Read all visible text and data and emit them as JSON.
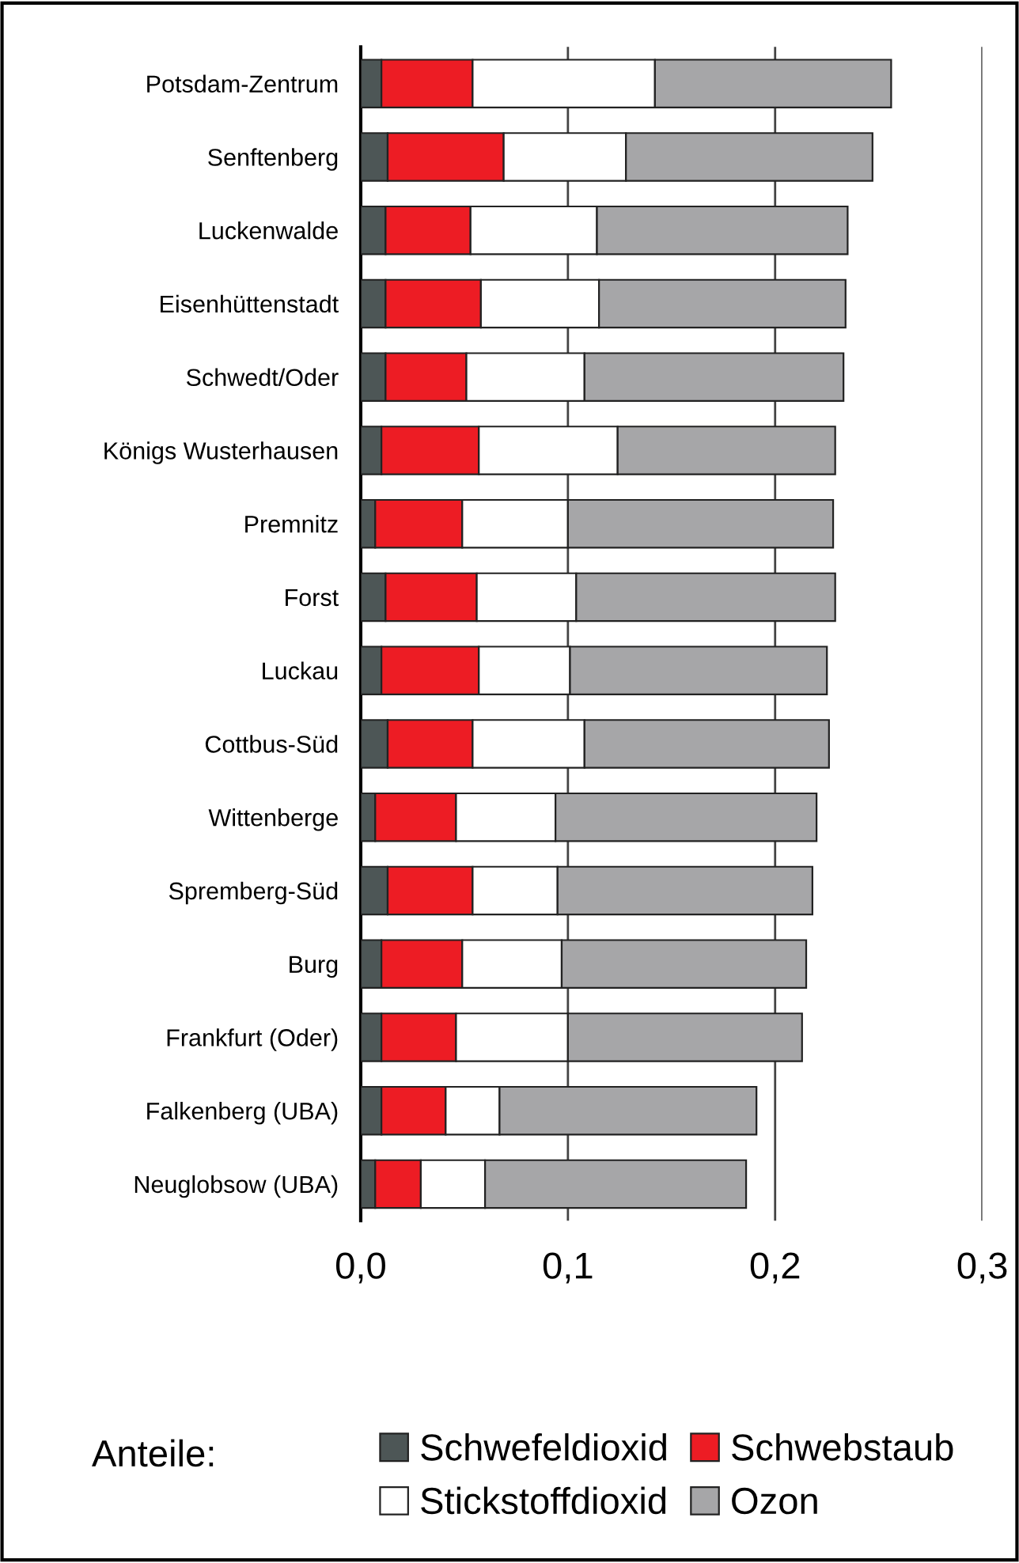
{
  "chart_data": {
    "type": "bar",
    "orientation": "horizontal",
    "stacked": true,
    "legend_title": "Anteile:",
    "legend": "bottom",
    "grid": "x",
    "categories": [
      "Potsdam-Zentrum",
      "Senftenberg",
      "Luckenwalde",
      "Eisenhüttenstadt",
      "Schwedt/Oder",
      "Königs Wusterhausen",
      "Premnitz",
      "Forst",
      "Luckau",
      "Cottbus-Süd",
      "Wittenberge",
      "Spremberg-Süd",
      "Burg",
      "Frankfurt (Oder)",
      "Falkenberg (UBA)",
      "Neuglobsow (UBA)"
    ],
    "series": [
      {
        "name": "Schwefeldioxid",
        "color": "#4d5656",
        "values": [
          0.01,
          0.013,
          0.012,
          0.012,
          0.012,
          0.01,
          0.007,
          0.012,
          0.01,
          0.013,
          0.007,
          0.013,
          0.01,
          0.01,
          0.01,
          0.007
        ]
      },
      {
        "name": "Schwebstaub",
        "color": "#ed1c24",
        "values": [
          0.044,
          0.056,
          0.041,
          0.046,
          0.039,
          0.047,
          0.042,
          0.044,
          0.047,
          0.041,
          0.039,
          0.041,
          0.039,
          0.036,
          0.031,
          0.022
        ]
      },
      {
        "name": "Stickstoffdioxid",
        "color": "#ffffff",
        "values": [
          0.088,
          0.059,
          0.061,
          0.057,
          0.057,
          0.067,
          0.051,
          0.048,
          0.044,
          0.054,
          0.048,
          0.041,
          0.048,
          0.054,
          0.026,
          0.031
        ]
      },
      {
        "name": "Ozon",
        "color": "#a6a6a8",
        "values": [
          0.114,
          0.119,
          0.121,
          0.119,
          0.125,
          0.105,
          0.128,
          0.125,
          0.124,
          0.118,
          0.126,
          0.123,
          0.118,
          0.113,
          0.124,
          0.126
        ]
      }
    ],
    "xlim": [
      0,
      0.3
    ],
    "xticks": [
      {
        "value": 0,
        "label": "0,0"
      },
      {
        "value": 0.1,
        "label": "0,1"
      },
      {
        "value": 0.2,
        "label": "0,2"
      },
      {
        "value": 0.3,
        "label": "0,3"
      }
    ]
  }
}
